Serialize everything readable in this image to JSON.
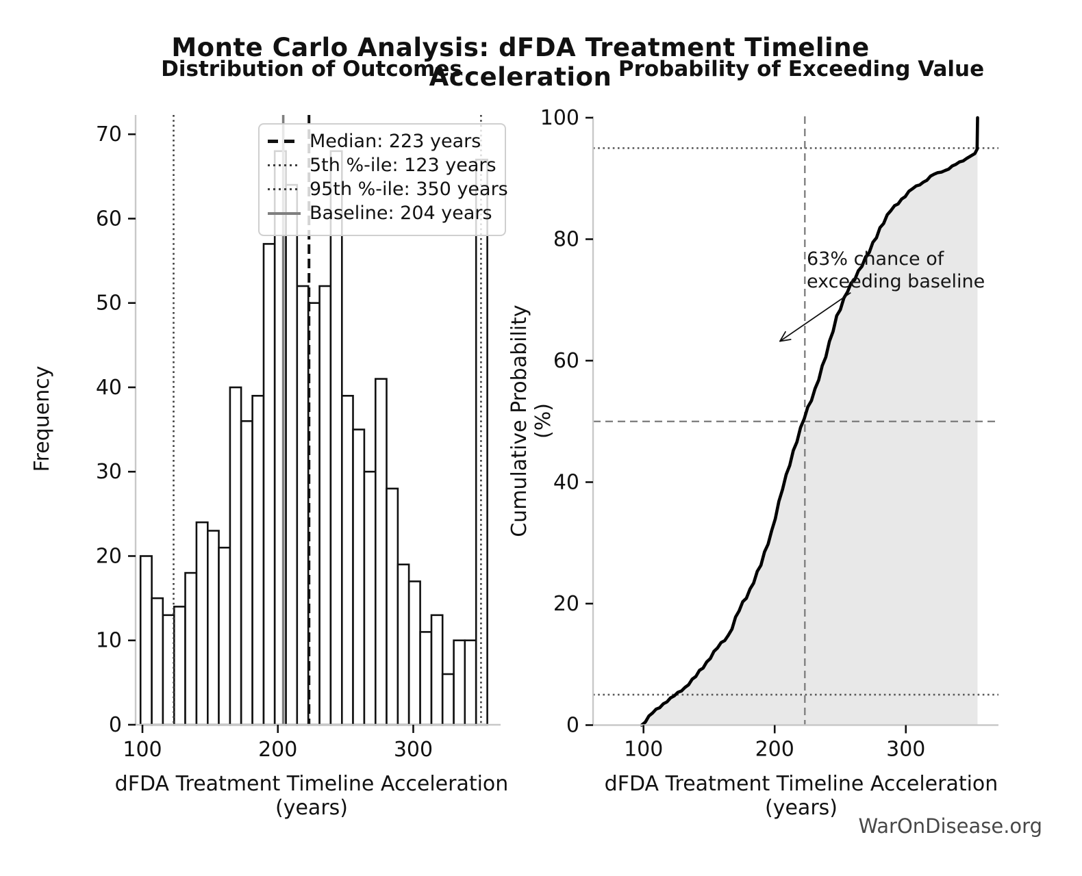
{
  "page": {
    "suptitle": "Monte Carlo Analysis: dFDA Treatment Timeline Acceleration",
    "watermark": "WarOnDisease.org"
  },
  "left_chart": {
    "title": "Distribution of Outcomes",
    "xlabel": "dFDA Treatment Timeline Acceleration (years)",
    "ylabel": "Frequency",
    "xticks": [
      100,
      200,
      300
    ],
    "yticks": [
      0,
      10,
      20,
      30,
      40,
      50,
      60,
      70
    ]
  },
  "right_chart": {
    "title": "Probability of Exceeding Value",
    "xlabel": "dFDA Treatment Timeline Acceleration (years)",
    "ylabel": "Cumulative Probability (%)",
    "xticks": [
      100,
      200,
      300
    ],
    "yticks": [
      0,
      20,
      40,
      60,
      80,
      100
    ],
    "annotation": {
      "line1": "63% chance of",
      "line2": "exceeding baseline"
    }
  },
  "legend": {
    "items": [
      {
        "label": "Median: 223 years",
        "style": "dashed-black"
      },
      {
        "label": "5th %-ile: 123 years",
        "style": "dotted-dark"
      },
      {
        "label": "95th %-ile: 350 years",
        "style": "dotted-dark"
      },
      {
        "label": "Baseline: 204 years",
        "style": "solid-gray"
      }
    ]
  },
  "chart_data": [
    {
      "type": "bar",
      "title": "Distribution of Outcomes",
      "xlabel": "dFDA Treatment Timeline Acceleration (years)",
      "ylabel": "Frequency",
      "n_samples": 1000,
      "bin_start": 98.6,
      "bin_width": 8.26,
      "bin_edges": [
        98.6,
        106.9,
        115.1,
        123.4,
        131.6,
        139.9,
        148.2,
        156.4,
        164.7,
        172.9,
        181.2,
        189.5,
        197.7,
        206.0,
        214.2,
        222.5,
        230.8,
        239.0,
        247.3,
        255.5,
        263.8,
        272.1,
        280.3,
        288.6,
        296.8,
        305.1,
        313.4,
        321.6,
        329.9,
        338.1,
        346.4,
        354.7
      ],
      "counts": [
        20,
        15,
        13,
        14,
        18,
        24,
        23,
        21,
        40,
        36,
        39,
        57,
        68,
        64,
        52,
        50,
        52,
        68,
        39,
        35,
        30,
        41,
        28,
        19,
        17,
        11,
        13,
        6,
        10,
        10,
        67
      ],
      "xlim": [
        95,
        363.5
      ],
      "ylim": [
        0,
        72.3
      ],
      "grid": false,
      "bar_fill": "#ffffff",
      "bar_edge": "#111111",
      "reference_lines": [
        {
          "value": 123,
          "style": "dotted",
          "color": "#3d3d3d",
          "label": "5th %-ile: 123 years"
        },
        {
          "value": 350,
          "style": "dotted",
          "color": "#3d3d3d",
          "label": "95th %-ile: 350 years"
        },
        {
          "value": 204,
          "style": "solid",
          "color": "#7f7f7f",
          "label": "Baseline: 204 years"
        },
        {
          "value": 223,
          "style": "dashed",
          "color": "#111111",
          "label": "Median: 223 years"
        }
      ],
      "legend_position": "upper right"
    },
    {
      "type": "line",
      "title": "Probability of Exceeding Value",
      "xlabel": "dFDA Treatment Timeline Acceleration (years)",
      "ylabel": "Cumulative Probability (%)",
      "x_bin_edges": [
        98.6,
        106.9,
        115.1,
        123.4,
        131.6,
        139.9,
        148.2,
        156.4,
        164.7,
        172.9,
        181.2,
        189.5,
        197.7,
        206.0,
        214.2,
        222.5,
        230.8,
        239.0,
        247.3,
        255.5,
        263.8,
        272.1,
        280.3,
        288.6,
        296.8,
        305.1,
        313.4,
        321.6,
        329.9,
        338.1,
        346.4,
        354.7
      ],
      "cumulative_percent": [
        0,
        2.0,
        3.5,
        4.8,
        6.2,
        8.0,
        10.4,
        12.7,
        14.8,
        18.8,
        22.4,
        26.3,
        32.0,
        38.8,
        45.2,
        50.4,
        55.4,
        60.6,
        67.4,
        71.3,
        74.8,
        77.8,
        81.9,
        84.7,
        86.6,
        88.3,
        89.4,
        90.7,
        91.3,
        92.3,
        93.3,
        100
      ],
      "tail_detail": [
        [
          352.6,
          94.1
        ],
        [
          354.3,
          94.8
        ],
        [
          354.7,
          100
        ]
      ],
      "xlim": [
        61.5,
        369
      ],
      "ylim": [
        0,
        100
      ],
      "area_fill": "#e8e8e8",
      "line_color": "#000000",
      "reference_lines": [
        {
          "axis": "y",
          "value": 95,
          "style": "dotted",
          "color": "#595959"
        },
        {
          "axis": "y",
          "value": 50,
          "style": "dashed",
          "color": "#808080"
        },
        {
          "axis": "y",
          "value": 5,
          "style": "dotted",
          "color": "#595959"
        },
        {
          "axis": "x",
          "value": 223,
          "style": "dashed",
          "color": "#808080"
        }
      ],
      "annotation": {
        "text": [
          "63% chance of",
          "exceeding baseline"
        ],
        "text_xy": [
          224.4,
          78.6
        ],
        "arrow_tail_xy": [
          258,
          71.2
        ],
        "arrow_tip_xy": [
          204,
          63.2
        ]
      }
    }
  ]
}
